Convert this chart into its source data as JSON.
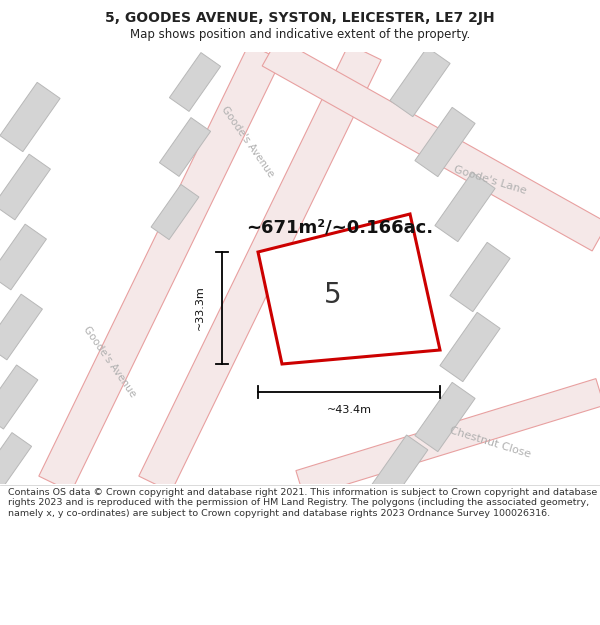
{
  "title": "5, GOODES AVENUE, SYSTON, LEICESTER, LE7 2JH",
  "subtitle": "Map shows position and indicative extent of the property.",
  "footer": "Contains OS data © Crown copyright and database right 2021. This information is subject to Crown copyright and database rights 2023 and is reproduced with the permission of HM Land Registry. The polygons (including the associated geometry, namely x, y co-ordinates) are subject to Crown copyright and database rights 2023 Ordnance Survey 100026316.",
  "area_text": "~671m²/~0.166ac.",
  "width_label": "~43.4m",
  "height_label": "~33.3m",
  "number_label": "5",
  "map_bg": "#f2eeee",
  "road_edge": "#e8a0a0",
  "road_fill": "#f5e8e8",
  "bld_edge": "#b8b8b8",
  "bld_fill": "#d4d4d4",
  "highlight_edge": "#cc0000",
  "highlight_fill": "#ffffff",
  "sl_color": "#b0b0b0",
  "goodes_lane": "Goode's Lane",
  "goodes_avenue": "Goode's Avenue",
  "chestnut_close": "Chestnut Close",
  "title_fontsize": 10,
  "subtitle_fontsize": 8.5,
  "footer_fontsize": 6.8
}
